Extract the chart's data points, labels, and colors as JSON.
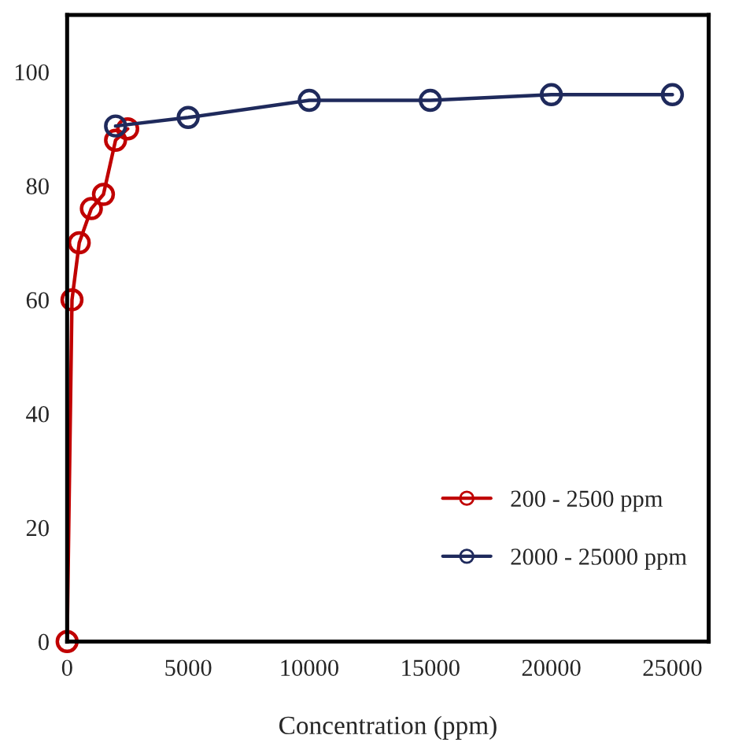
{
  "chart_data": {
    "type": "line",
    "xlabel": "Concentration (ppm)",
    "xlim": [
      0,
      26500
    ],
    "xticks": [
      0,
      5000,
      10000,
      15000,
      20000,
      25000
    ],
    "ylim": [
      0,
      110
    ],
    "yticks": [
      0,
      20,
      40,
      60,
      80,
      100
    ],
    "marker": "circle",
    "line_style": "solid",
    "grid": false,
    "legend": "bottom right",
    "series": [
      {
        "name": "200 - 2500 ppm",
        "color": "#c00000",
        "x": [
          0,
          200,
          500,
          1000,
          1500,
          2000,
          2500
        ],
        "values": [
          0,
          60,
          70,
          76,
          78.5,
          88,
          90
        ]
      },
      {
        "name": "2000 - 25000 ppm",
        "color": "#1f2a5c",
        "x": [
          2000,
          5000,
          10000,
          15000,
          20000,
          25000
        ],
        "values": [
          90.5,
          92,
          95,
          95,
          96,
          96
        ]
      }
    ]
  }
}
